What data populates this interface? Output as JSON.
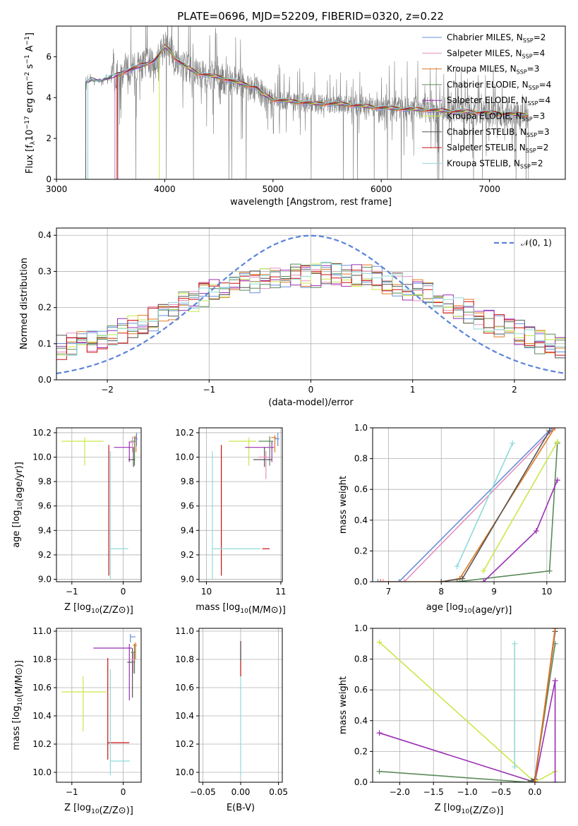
{
  "colors": {
    "Chabrier MILES": "#6a8fd8",
    "Salpeter MILES": "#e68fbf",
    "Kroupa MILES": "#e07a22",
    "Chabrier ELODIE": "#5a8a5a",
    "Salpeter ELODIE": "#9b2fb4",
    "Kroupa ELODIE": "#c9e84a",
    "Chabrier STELIB": "#555555",
    "Salpeter STELIB": "#cc1111",
    "Kroupa STELIB": "#8fdada",
    "data": "#808080",
    "gauss": "#5b84d8"
  },
  "chart_data": [
    {
      "id": "spectrum",
      "type": "line",
      "title": "PLATE=0696, MJD=52209, FIBERID=0320, z=0.22",
      "xlabel": "wavelength [Angstrom, rest frame]",
      "ylabel_parts": [
        "Flux [f",
        "λ",
        "10",
        "−17",
        " erg cm",
        "−2",
        " s",
        "−1",
        " A",
        "−1",
        "]"
      ],
      "xlim": [
        3000,
        7700
      ],
      "ylim": [
        0,
        7.5
      ],
      "xticks": [
        "3000",
        "4000",
        "5000",
        "6000",
        "7000"
      ],
      "xtick_values": [
        3000,
        4000,
        5000,
        6000,
        7000
      ],
      "yticks": [
        "0",
        "2",
        "4",
        "6"
      ],
      "ytick_values": [
        0,
        2,
        4,
        6
      ],
      "legend": [
        {
          "name": "Chabrier MILES",
          "nssp": "2"
        },
        {
          "name": "Salpeter MILES",
          "nssp": "4"
        },
        {
          "name": "Kroupa MILES",
          "nssp": "3"
        },
        {
          "name": "Chabrier ELODIE",
          "nssp": "4"
        },
        {
          "name": "Salpeter ELODIE",
          "nssp": "4"
        },
        {
          "name": "Kroupa ELODIE",
          "nssp": "3"
        },
        {
          "name": "Chabrier STELIB",
          "nssp": "3"
        },
        {
          "name": "Salpeter STELIB",
          "nssp": "2"
        },
        {
          "name": "Kroupa STELIB",
          "nssp": "2"
        }
      ],
      "legend_label": "N",
      "legend_sub": "SSP",
      "continuum": [
        [
          3270,
          4.7
        ],
        [
          3320,
          4.9
        ],
        [
          3400,
          4.8
        ],
        [
          3500,
          5.0
        ],
        [
          3600,
          5.2
        ],
        [
          3700,
          5.4
        ],
        [
          3800,
          5.6
        ],
        [
          3900,
          5.8
        ],
        [
          3950,
          6.1
        ],
        [
          4000,
          6.5
        ],
        [
          4050,
          6.3
        ],
        [
          4100,
          5.9
        ],
        [
          4200,
          5.5
        ],
        [
          4300,
          5.2
        ],
        [
          4500,
          5.0
        ],
        [
          4700,
          4.7
        ],
        [
          4850,
          4.5
        ],
        [
          4900,
          4.2
        ],
        [
          5000,
          3.9
        ],
        [
          5200,
          3.8
        ],
        [
          5400,
          3.7
        ],
        [
          5600,
          3.7
        ],
        [
          5800,
          3.6
        ],
        [
          6000,
          3.5
        ],
        [
          6200,
          3.45
        ],
        [
          6400,
          3.4
        ],
        [
          6600,
          3.35
        ],
        [
          6800,
          3.3
        ],
        [
          7000,
          3.25
        ],
        [
          7200,
          3.2
        ],
        [
          7350,
          3.15
        ]
      ],
      "model_start": {
        "Chabrier MILES": 3540,
        "Salpeter MILES": 3540,
        "Kroupa MILES": 3560,
        "Chabrier ELODIE": 3290,
        "Salpeter ELODIE": 3290,
        "Kroupa ELODIE": 3950,
        "Chabrier STELIB": 3270,
        "Salpeter STELIB": 3560,
        "Kroupa STELIB": 3290
      },
      "data_range": [
        3270,
        7360
      ]
    },
    {
      "id": "residuals",
      "type": "step",
      "xlabel": "(data-model)/error",
      "ylabel": "Normed distribution",
      "xlim": [
        -2.5,
        2.5
      ],
      "ylim": [
        0,
        0.42
      ],
      "xticks": [
        "−2",
        "−1",
        "0",
        "1",
        "2"
      ],
      "xtick_values": [
        -2,
        -1,
        0,
        1,
        2
      ],
      "yticks": [
        "0.0",
        "0.1",
        "0.2",
        "0.3",
        "0.4"
      ],
      "ytick_values": [
        0,
        0.1,
        0.2,
        0.3,
        0.4
      ],
      "gauss_label": "𝒩(0, 1)",
      "bin_width": 0.1,
      "envelope": [
        0.09,
        0.095,
        0.1,
        0.11,
        0.115,
        0.125,
        0.135,
        0.15,
        0.16,
        0.17,
        0.185,
        0.2,
        0.21,
        0.22,
        0.235,
        0.245,
        0.25,
        0.26,
        0.265,
        0.27,
        0.275,
        0.28,
        0.285,
        0.29,
        0.29,
        0.29,
        0.295,
        0.295,
        0.29,
        0.29,
        0.285,
        0.28,
        0.27,
        0.265,
        0.255,
        0.245,
        0.235,
        0.225,
        0.215,
        0.2,
        0.19,
        0.175,
        0.16,
        0.15,
        0.14,
        0.13,
        0.12,
        0.105,
        0.095,
        0.085
      ]
    },
    {
      "id": "age_vs_Z",
      "type": "errorbar",
      "xlabel": "Z [log10(Z/Z⊙)]",
      "ylabel": "age  [log10(age/yr)]",
      "xlim": [
        -1.3,
        0.35
      ],
      "ylim": [
        8.98,
        10.24
      ],
      "xticks": [
        "−1",
        "0"
      ],
      "xtick_values": [
        -1,
        0
      ],
      "yticks": [
        "9.0",
        "9.2",
        "9.4",
        "9.6",
        "9.8",
        "10.0",
        "10.2"
      ],
      "ytick_values": [
        9.0,
        9.2,
        9.4,
        9.6,
        9.8,
        10.0,
        10.2
      ],
      "points": [
        {
          "name": "Kroupa ELODIE",
          "x": -0.75,
          "xerr": [
            0.45,
            0.37
          ],
          "y": 10.13,
          "yerr": [
            0.2,
            0.03
          ]
        },
        {
          "name": "Salpeter ELODIE",
          "x": 0.12,
          "xerr": [
            0.3,
            0.08
          ],
          "y": 10.08,
          "yerr": [
            0.12,
            0.05
          ]
        },
        {
          "name": "Salpeter STELIB",
          "x": -0.28,
          "xerr": [
            0.0,
            0.0
          ],
          "y": 10.05,
          "yerr": [
            1.02,
            0.05
          ]
        },
        {
          "name": "Kroupa STELIB",
          "x": -0.25,
          "xerr": [
            0.0,
            0.35
          ],
          "y": 9.25,
          "yerr": [
            0.25,
            0.8
          ]
        },
        {
          "name": "Chabrier ELODIE",
          "x": 0.22,
          "xerr": [
            0.08,
            0.02
          ],
          "y": 10.13,
          "yerr": [
            0.2,
            0.04
          ]
        },
        {
          "name": "Chabrier STELIB",
          "x": 0.2,
          "xerr": [
            0.1,
            0.03
          ],
          "y": 9.98,
          "yerr": [
            0.06,
            0.1
          ]
        },
        {
          "name": "Kroupa MILES",
          "x": 0.25,
          "xerr": [
            0.05,
            0.02
          ],
          "y": 10.16,
          "yerr": [
            0.12,
            0.02
          ]
        },
        {
          "name": "Salpeter MILES",
          "x": 0.18,
          "xerr": [
            0.05,
            0.05
          ],
          "y": 10.12,
          "yerr": [
            0.08,
            0.05
          ]
        },
        {
          "name": "Chabrier MILES",
          "x": 0.26,
          "xerr": [
            0.04,
            0.02
          ],
          "y": 10.15,
          "yerr": [
            0.06,
            0.05
          ]
        }
      ]
    },
    {
      "id": "age_vs_mass",
      "type": "errorbar",
      "xlabel": "mass [log10(M/M⊙)]",
      "ylabel": "",
      "xlim": [
        9.9,
        11.02
      ],
      "ylim": [
        8.98,
        10.24
      ],
      "xticks": [
        "10",
        "11"
      ],
      "xtick_values": [
        10,
        11
      ],
      "yticks": [
        "9.0",
        "9.2",
        "9.4",
        "9.6",
        "9.8",
        "10.0",
        "10.2"
      ],
      "ytick_values": [
        9.0,
        9.2,
        9.4,
        9.6,
        9.8,
        10.0,
        10.2
      ],
      "points": [
        {
          "name": "Kroupa ELODIE",
          "x": 10.57,
          "xerr": [
            0.27,
            0.1
          ],
          "y": 10.13,
          "yerr": [
            0.2,
            0.03
          ]
        },
        {
          "name": "Salpeter ELODIE",
          "x": 10.88,
          "xerr": [
            0.36,
            0.03
          ],
          "y": 10.08,
          "yerr": [
            0.12,
            0.05
          ]
        },
        {
          "name": "Salpeter STELIB",
          "x": 10.2,
          "xerr": [
            0.0,
            0.0
          ],
          "y": 10.05,
          "yerr": [
            1.02,
            0.05
          ]
        },
        {
          "name": "Kroupa STELIB",
          "x": 10.08,
          "xerr": [
            0.0,
            0.65
          ],
          "y": 9.25,
          "yerr": [
            0.25,
            0.8
          ]
        },
        {
          "name": "Salpeter STELIB (h)",
          "colorKey": "Salpeter STELIB",
          "x": 10.75,
          "xerr": [
            0.0,
            0.1
          ],
          "y": 9.25,
          "yerr": [
            0.0,
            0.0
          ]
        },
        {
          "name": "Chabrier ELODIE",
          "x": 10.85,
          "xerr": [
            0.15,
            0.05
          ],
          "y": 10.13,
          "yerr": [
            0.2,
            0.04
          ]
        },
        {
          "name": "Chabrier STELIB",
          "x": 10.78,
          "xerr": [
            0.15,
            0.1
          ],
          "y": 9.98,
          "yerr": [
            0.06,
            0.1
          ]
        },
        {
          "name": "Kroupa MILES",
          "x": 10.92,
          "xerr": [
            0.05,
            0.02
          ],
          "y": 10.16,
          "yerr": [
            0.12,
            0.02
          ]
        },
        {
          "name": "Salpeter MILES",
          "x": 10.8,
          "xerr": [
            0.1,
            0.05
          ],
          "y": 10.0,
          "yerr": [
            0.18,
            0.05
          ]
        },
        {
          "name": "Chabrier MILES",
          "x": 10.96,
          "xerr": [
            0.04,
            0.02
          ],
          "y": 10.15,
          "yerr": [
            0.06,
            0.05
          ]
        }
      ]
    },
    {
      "id": "cum_age",
      "type": "line",
      "xlabel": "age  [log10(age/yr)]",
      "ylabel": "mass weight",
      "xlim": [
        6.7,
        10.35
      ],
      "ylim": [
        0,
        1.0
      ],
      "xticks": [
        "7",
        "8",
        "9",
        "10"
      ],
      "xtick_values": [
        7,
        8,
        9,
        10
      ],
      "yticks": [
        "0.0",
        "0.2",
        "0.4",
        "0.6",
        "0.8",
        "1.0"
      ],
      "ytick_values": [
        0,
        0.2,
        0.4,
        0.6,
        0.8,
        1.0
      ],
      "series": [
        {
          "name": "Chabrier MILES",
          "x": [
            6.8,
            7.2,
            10.1
          ],
          "y": [
            0.0,
            0.0,
            1.0
          ]
        },
        {
          "name": "Salpeter MILES",
          "x": [
            6.9,
            7.3,
            10.15
          ],
          "y": [
            0.0,
            0.0,
            1.0
          ]
        },
        {
          "name": "Kroupa MILES",
          "x": [
            6.85,
            8.0,
            8.35,
            10.15
          ],
          "y": [
            0.0,
            0.0,
            0.02,
            1.0
          ]
        },
        {
          "name": "Chabrier ELODIE",
          "x": [
            8.3,
            10.05,
            10.2
          ],
          "y": [
            0.0,
            0.07,
            0.9
          ]
        },
        {
          "name": "Salpeter ELODIE",
          "x": [
            8.8,
            9.8,
            10.2
          ],
          "y": [
            0.0,
            0.33,
            0.66
          ]
        },
        {
          "name": "Kroupa ELODIE",
          "x": [
            8.8,
            10.2
          ],
          "y": [
            0.07,
            0.91
          ]
        },
        {
          "name": "Chabrier STELIB",
          "x": [
            8.0,
            8.4,
            10.05
          ],
          "y": [
            0.0,
            0.02,
            0.98
          ]
        },
        {
          "name": "Kroupa STELIB",
          "x": [
            8.3,
            9.35
          ],
          "y": [
            0.1,
            0.9
          ]
        }
      ]
    },
    {
      "id": "mass_vs_Z",
      "type": "errorbar",
      "xlabel": "Z [log10(Z/Z⊙)]",
      "ylabel": "mass [log10(M/M⊙)]",
      "xlim": [
        -1.3,
        0.35
      ],
      "ylim": [
        9.93,
        11.02
      ],
      "xticks": [
        "−1",
        "0"
      ],
      "xtick_values": [
        -1,
        0
      ],
      "yticks": [
        "10.0",
        "10.2",
        "10.4",
        "10.6",
        "10.8",
        "11.0"
      ],
      "ytick_values": [
        10.0,
        10.2,
        10.4,
        10.6,
        10.8,
        11.0
      ],
      "points": [
        {
          "name": "Kroupa ELODIE",
          "x": -0.78,
          "xerr": [
            0.42,
            0.45
          ],
          "y": 10.57,
          "yerr": [
            0.28,
            0.11
          ]
        },
        {
          "name": "Salpeter ELODIE",
          "x": 0.12,
          "xerr": [
            0.7,
            0.05
          ],
          "y": 10.88,
          "yerr": [
            0.37,
            0.03
          ]
        },
        {
          "name": "Salpeter STELIB",
          "x": -0.3,
          "xerr": [
            0.0,
            0.42
          ],
          "y": 10.21,
          "yerr": [
            0.12,
            0.6
          ]
        },
        {
          "name": "Kroupa STELIB",
          "x": -0.25,
          "xerr": [
            0.0,
            0.38
          ],
          "y": 10.08,
          "yerr": [
            0.1,
            0.65
          ]
        },
        {
          "name": "Chabrier ELODIE",
          "x": 0.22,
          "xerr": [
            0.07,
            0.02
          ],
          "y": 10.85,
          "yerr": [
            0.15,
            0.06
          ]
        },
        {
          "name": "Chabrier STELIB",
          "x": 0.18,
          "xerr": [
            0.1,
            0.05
          ],
          "y": 10.78,
          "yerr": [
            0.25,
            0.1
          ]
        },
        {
          "name": "Kroupa MILES",
          "x": 0.24,
          "xerr": [
            0.05,
            0.03
          ],
          "y": 10.9,
          "yerr": [
            0.1,
            0.02
          ]
        },
        {
          "name": "Salpeter MILES",
          "x": 0.2,
          "xerr": [
            0.05,
            0.05
          ],
          "y": 10.8,
          "yerr": [
            0.1,
            0.05
          ]
        },
        {
          "name": "Chabrier MILES",
          "x": 0.14,
          "xerr": [
            0.0,
            0.1
          ],
          "y": 10.96,
          "yerr": [
            0.04,
            0.02
          ]
        }
      ]
    },
    {
      "id": "mass_vs_ebv",
      "type": "errorbar",
      "xlabel": "E(B-V)",
      "ylabel": "",
      "xlim": [
        -0.055,
        0.055
      ],
      "ylim": [
        9.93,
        11.02
      ],
      "xticks": [
        "−0.05",
        "0.00",
        "0.05"
      ],
      "xtick_values": [
        -0.05,
        0,
        0.05
      ],
      "yticks": [
        "10.0",
        "10.2",
        "10.4",
        "10.6",
        "10.8",
        "11.0"
      ],
      "ytick_values": [
        10.0,
        10.2,
        10.4,
        10.6,
        10.8,
        11.0
      ],
      "points": [
        {
          "name": "Kroupa STELIB",
          "x": 0.0,
          "xerr": [
            0,
            0
          ],
          "y": 10.08,
          "yerr": [
            0.1,
            0.78
          ]
        },
        {
          "name": "Salpeter STELIB",
          "x": 0.0,
          "xerr": [
            0,
            0
          ],
          "y": 10.81,
          "yerr": [
            0.13,
            0.12
          ]
        },
        {
          "name": "Chabrier STELIB",
          "x": 0.0,
          "xerr": [
            0,
            0
          ],
          "y": 10.85,
          "yerr": [
            0.06,
            0.08
          ]
        }
      ]
    },
    {
      "id": "cum_Z",
      "type": "line",
      "xlabel": "Z [log10(Z/Z⊙)]",
      "ylabel": "mass weight",
      "xlim": [
        -2.4,
        0.45
      ],
      "ylim": [
        0,
        1.0
      ],
      "xticks": [
        "−2.0",
        "−1.5",
        "−1.0",
        "−0.5",
        "0.0"
      ],
      "xtick_values": [
        -2.0,
        -1.5,
        -1.0,
        -0.5,
        0.0
      ],
      "yticks": [
        "0.0",
        "0.2",
        "0.4",
        "0.6",
        "0.8",
        "1.0"
      ],
      "ytick_values": [
        0,
        0.2,
        0.4,
        0.6,
        0.8,
        1.0
      ],
      "series": [
        {
          "name": "Kroupa ELODIE",
          "x": [
            -2.3,
            0.0,
            0.3
          ],
          "y": [
            0.91,
            0.0,
            0.07
          ]
        },
        {
          "name": "Salpeter ELODIE",
          "x": [
            -2.3,
            0.0,
            0.3,
            0.3
          ],
          "y": [
            0.32,
            0.0,
            0.66,
            0.0
          ]
        },
        {
          "name": "Chabrier ELODIE",
          "x": [
            -2.3,
            -0.1,
            0.0,
            0.3
          ],
          "y": [
            0.07,
            0.0,
            0.02,
            0.9
          ]
        },
        {
          "name": "Kroupa STELIB",
          "x": [
            -0.3,
            -0.3
          ],
          "y": [
            0.1,
            0.9
          ]
        },
        {
          "name": "Chabrier STELIB",
          "x": [
            -0.05,
            0.0,
            0.3
          ],
          "y": [
            0.01,
            0.02,
            0.98
          ]
        },
        {
          "name": "Salpeter STELIB",
          "x": [
            0.0,
            0.3
          ],
          "y": [
            0.0,
            1.0
          ]
        },
        {
          "name": "Kroupa MILES",
          "x": [
            0.0,
            0.3
          ],
          "y": [
            0.0,
            1.0
          ]
        }
      ]
    }
  ]
}
